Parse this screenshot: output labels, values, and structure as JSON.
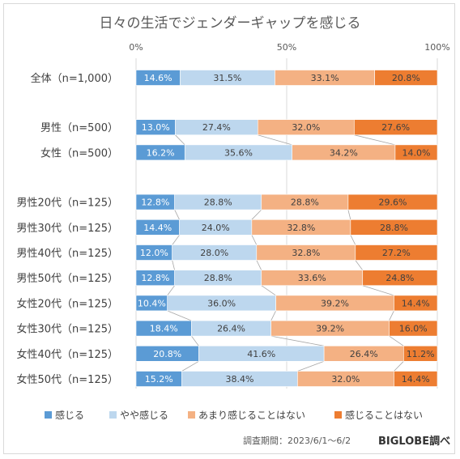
{
  "title": "日々の生活でジェンダーギャップを感じる",
  "footer": {
    "period": "調査期間：2023/6/1～6/2",
    "brand": "BIGLOBE調べ"
  },
  "chart_data": {
    "type": "bar",
    "stacked": true,
    "orientation": "horizontal",
    "percent_100": true,
    "grid": true,
    "legend_position": "bottom",
    "x_ticks": [
      "0%",
      "50%",
      "100%"
    ],
    "xlim": [
      0,
      100
    ],
    "series_colors": [
      "#5b9bd5",
      "#bdd7ee",
      "#f4b183",
      "#ed7d31"
    ],
    "series_label_colors": [
      "#ffffff",
      "#404040",
      "#404040",
      "#404040"
    ],
    "series": [
      {
        "name": "感じる"
      },
      {
        "name": "やや感じる"
      },
      {
        "name": "あまり感じることはない"
      },
      {
        "name": "感じることはない"
      }
    ],
    "groups": [
      {
        "rows": [
          {
            "label": "全体（n=1,000）",
            "values": [
              14.6,
              31.5,
              33.1,
              20.8
            ],
            "texts": [
              "14.6%",
              "31.5%",
              "33.1%",
              "20.8%"
            ]
          }
        ]
      },
      {
        "rows": [
          {
            "label": "男性（n=500）",
            "values": [
              13.0,
              27.4,
              32.0,
              27.6
            ],
            "texts": [
              "13.0%",
              "27.4%",
              "32.0%",
              "27.6%"
            ]
          },
          {
            "label": "女性（n=500）",
            "values": [
              16.2,
              35.6,
              34.2,
              14.0
            ],
            "texts": [
              "16.2%",
              "35.6%",
              "34.2%",
              "14.0%"
            ]
          }
        ]
      },
      {
        "rows": [
          {
            "label": "男性20代（n=125）",
            "values": [
              12.8,
              28.8,
              28.8,
              29.6
            ],
            "texts": [
              "12.8%",
              "28.8%",
              "28.8%",
              "29.6%"
            ]
          },
          {
            "label": "男性30代（n=125）",
            "values": [
              14.4,
              24.0,
              32.8,
              28.8
            ],
            "texts": [
              "14.4%",
              "24.0%",
              "32.8%",
              "28.8%"
            ]
          },
          {
            "label": "男性40代（n=125）",
            "values": [
              12.0,
              28.0,
              32.8,
              27.2
            ],
            "texts": [
              "12.0%",
              "28.0%",
              "32.8%",
              "27.2%"
            ]
          },
          {
            "label": "男性50代（n=125）",
            "values": [
              12.8,
              28.8,
              33.6,
              24.8
            ],
            "texts": [
              "12.8%",
              "28.8%",
              "33.6%",
              "24.8%"
            ]
          },
          {
            "label": "女性20代（n=125）",
            "values": [
              10.4,
              36.0,
              39.2,
              14.4
            ],
            "texts": [
              "10.4%",
              "36.0%",
              "39.2%",
              "14.4%"
            ]
          },
          {
            "label": "女性30代（n=125）",
            "values": [
              18.4,
              26.4,
              39.2,
              16.0
            ],
            "texts": [
              "18.4%",
              "26.4%",
              "39.2%",
              "16.0%"
            ]
          },
          {
            "label": "女性40代（n=125）",
            "values": [
              20.8,
              41.6,
              26.4,
              11.2
            ],
            "texts": [
              "20.8%",
              "41.6%",
              "26.4%",
              "11.2%"
            ]
          },
          {
            "label": "女性50代（n=125）",
            "values": [
              15.2,
              38.4,
              32.0,
              14.4
            ],
            "texts": [
              "15.2%",
              "38.4%",
              "32.0%",
              "14.4%"
            ]
          }
        ]
      }
    ]
  }
}
